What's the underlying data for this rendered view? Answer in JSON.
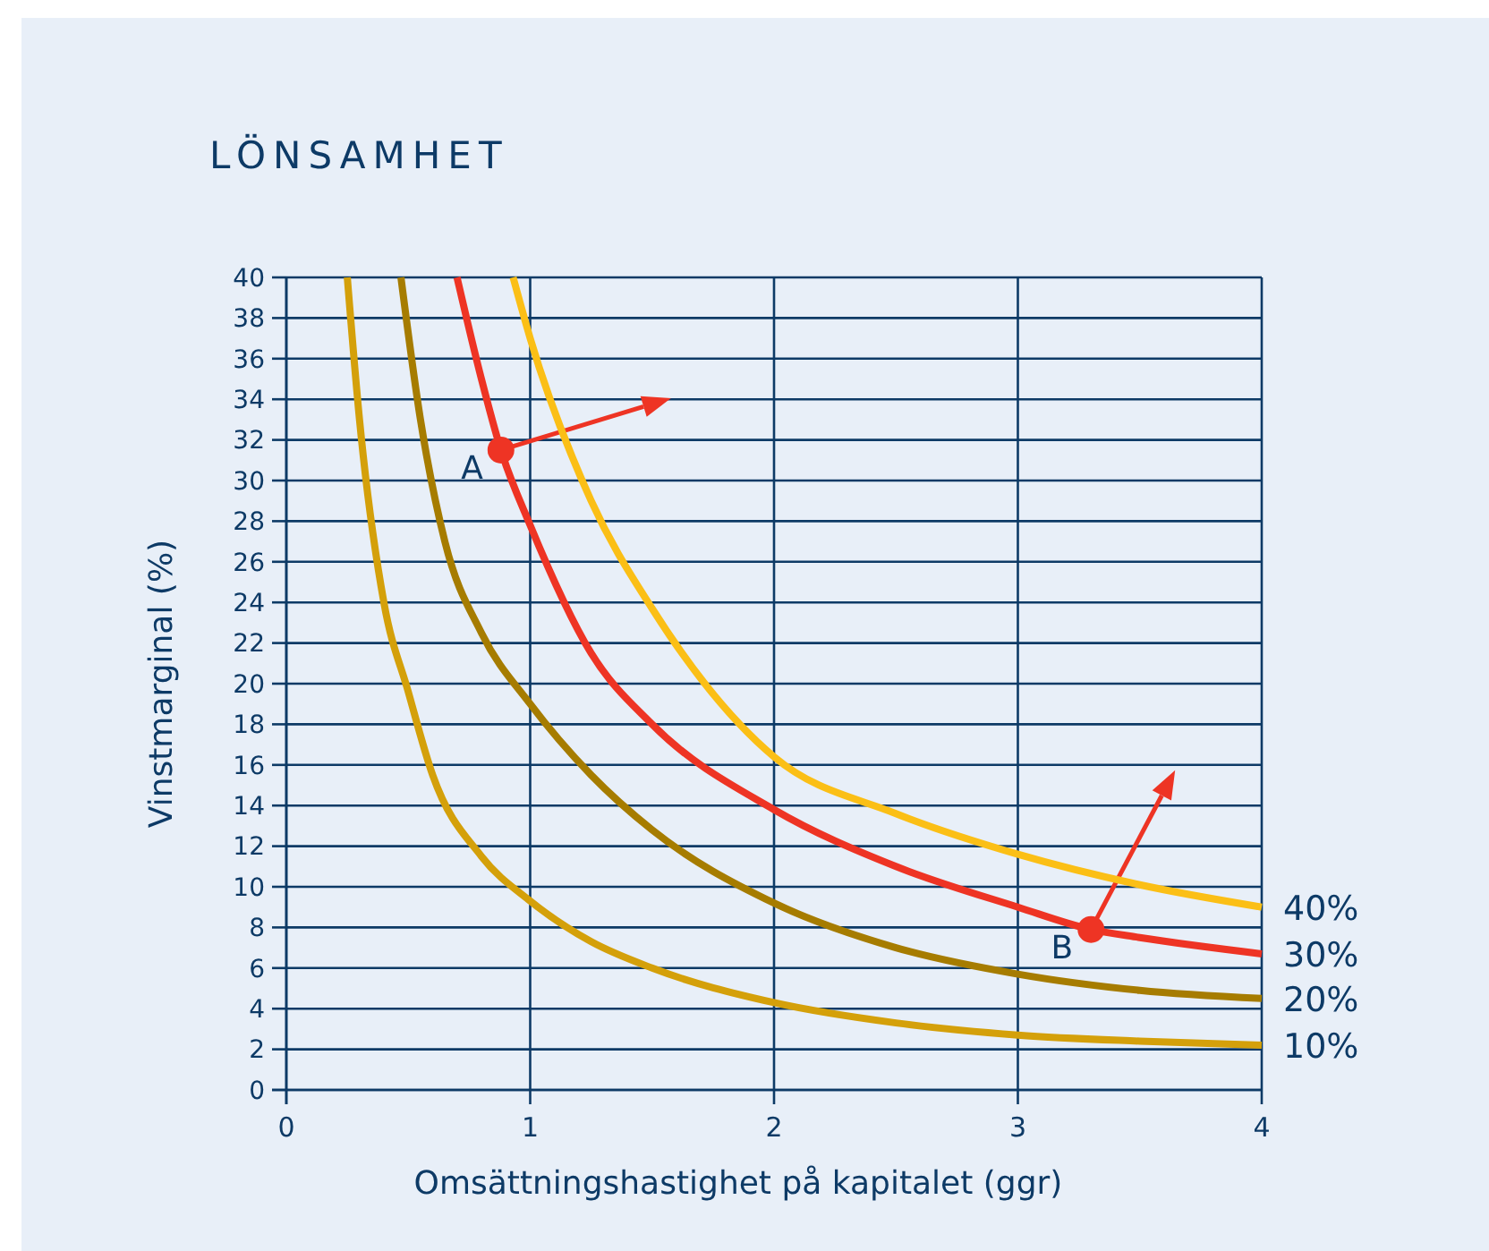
{
  "chart_data": {
    "type": "line",
    "title": "LÖNSAMHET",
    "xlabel": "Omsättningshastighet på kapitalet (ggr)",
    "ylabel": "Vinstmarginal (%)",
    "xlim": [
      0,
      4
    ],
    "xticks": [
      0,
      1,
      2,
      3,
      4
    ],
    "ylim": [
      0,
      40
    ],
    "yticks": [
      0,
      2,
      4,
      6,
      8,
      10,
      12,
      14,
      16,
      18,
      20,
      22,
      24,
      26,
      28,
      30,
      32,
      34,
      36,
      38,
      40
    ],
    "grid": true,
    "legend": false,
    "line_style": "solid",
    "series": [
      {
        "name": "10%",
        "color": "#d4a00a",
        "x": [
          0.25,
          0.3,
          0.4,
          0.5,
          0.6,
          0.8,
          1,
          1.25,
          1.5,
          2,
          2.5,
          3,
          3.5,
          4
        ],
        "values": [
          40,
          33,
          24,
          19.6,
          15.5,
          11.5,
          9.3,
          7.3,
          6,
          4.3,
          3.3,
          2.7,
          2.4,
          2.2
        ]
      },
      {
        "name": "20%",
        "color": "#a67c00",
        "x": [
          0.47,
          0.55,
          0.65,
          0.8,
          1,
          1.25,
          1.5,
          2,
          2.5,
          3,
          3.5,
          4
        ],
        "values": [
          40,
          33,
          27,
          22.5,
          19,
          15.5,
          12.8,
          9.2,
          7,
          5.7,
          4.9,
          4.5
        ]
      },
      {
        "name": "30%",
        "color": "#ee3424",
        "x": [
          0.7,
          0.8,
          0.88,
          1,
          1.25,
          1.5,
          2,
          2.5,
          3,
          3.3,
          3.5,
          4
        ],
        "values": [
          40,
          35,
          31.5,
          27.8,
          21.5,
          18,
          13.8,
          11,
          9,
          7.9,
          7.5,
          6.7
        ]
      },
      {
        "name": "40%",
        "color": "#fbbf16",
        "x": [
          0.93,
          1,
          1.25,
          1.5,
          2,
          2.5,
          3,
          3.5,
          4
        ],
        "values": [
          40,
          37,
          29,
          23.7,
          16.4,
          13.6,
          11.6,
          10.1,
          9
        ]
      },
      {
        "type": "scatter",
        "color": "#ee3424",
        "marker": "circle",
        "x": [
          0.88,
          3.3
        ],
        "values": [
          31.5,
          7.9
        ]
      }
    ],
    "annotations": [
      {
        "text": "A",
        "x": 0.88,
        "y": 31.5
      },
      {
        "text": "B",
        "x": 3.3,
        "y": 7.9
      }
    ]
  }
}
